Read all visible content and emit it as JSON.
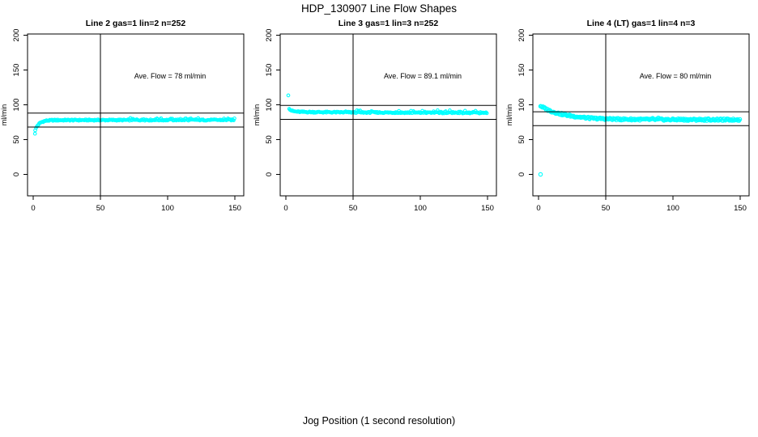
{
  "figure": {
    "main_title": "HDP_130907  Line Flow Shapes",
    "x_axis_label": "Jog Position (1 second resolution)",
    "point_color": "#00ffff",
    "line_color": "#000000",
    "background_color": "#ffffff"
  },
  "chart_data": [
    {
      "type": "scatter",
      "title": "Line 2 gas=1 lin=2 n=252",
      "annotation": "Ave. Flow =  78  ml/min",
      "ave_flow": 78,
      "n": 252,
      "ylabel": "ml/min",
      "xlim": [
        0,
        150
      ],
      "ylim": [
        0,
        200
      ],
      "x_ticks": [
        "0",
        "50",
        "100",
        "150"
      ],
      "y_ticks": [
        "0",
        "50",
        "100",
        "150",
        "200"
      ],
      "x_tick_values": [
        0,
        50,
        100,
        150
      ],
      "y_tick_values": [
        0,
        50,
        100,
        150,
        200
      ],
      "vline_x": 50,
      "hlines": [
        88,
        68
      ],
      "outliers": [
        [
          1.3,
          58.5
        ]
      ],
      "profile": [
        [
          1.5,
          64
        ],
        [
          2.5,
          68
        ],
        [
          3.5,
          71
        ],
        [
          5,
          73.8
        ],
        [
          6.5,
          75.3
        ],
        [
          8,
          76.3
        ],
        [
          10,
          77.2
        ],
        [
          14,
          77.8
        ],
        [
          25,
          78
        ],
        [
          150,
          78.2
        ]
      ],
      "x_step": 0.6,
      "marker_radius": 1.8,
      "jitter": {
        "base": 0.9,
        "spike": 2.8,
        "spike_after_x": 70,
        "spike_rate": 0.25
      }
    },
    {
      "type": "scatter",
      "title": "Line 3 gas=1 lin=3 n=252",
      "annotation": "Ave. Flow =  89.1  ml/min",
      "ave_flow": 89.1,
      "n": 252,
      "ylabel": "ml/min",
      "xlim": [
        0,
        150
      ],
      "ylim": [
        0,
        200
      ],
      "x_ticks": [
        "0",
        "50",
        "100",
        "150"
      ],
      "y_ticks": [
        "0",
        "50",
        "100",
        "150",
        "200"
      ],
      "x_tick_values": [
        0,
        50,
        100,
        150
      ],
      "y_tick_values": [
        0,
        50,
        100,
        150,
        200
      ],
      "vline_x": 50,
      "hlines": [
        99.1,
        79.1
      ],
      "outliers": [
        [
          1.8,
          113.5
        ]
      ],
      "profile": [
        [
          2.5,
          95
        ],
        [
          3.5,
          92.5
        ],
        [
          5,
          91
        ],
        [
          7,
          90.3
        ],
        [
          10,
          89.8
        ],
        [
          20,
          89.5
        ],
        [
          40,
          89.2
        ],
        [
          80,
          88.8
        ],
        [
          150,
          88.3
        ]
      ],
      "x_step": 0.6,
      "marker_radius": 1.8,
      "jitter": {
        "base": 0.9,
        "spike": 3.5,
        "spike_after_x": 40,
        "spike_rate": 0.18
      }
    },
    {
      "type": "scatter",
      "title": "Line 4 (LT) gas=1 lin=4 n=3",
      "annotation": "Ave. Flow =  80  ml/min",
      "ave_flow": 80,
      "n": 3,
      "ylabel": "ml/min",
      "xlim": [
        0,
        150
      ],
      "ylim": [
        0,
        200
      ],
      "x_ticks": [
        "0",
        "50",
        "100",
        "150"
      ],
      "y_ticks": [
        "0",
        "50",
        "100",
        "150",
        "200"
      ],
      "x_tick_values": [
        0,
        50,
        100,
        150
      ],
      "y_tick_values": [
        0,
        50,
        100,
        150,
        200
      ],
      "vline_x": 50,
      "hlines": [
        90,
        70
      ],
      "outliers": [
        [
          1.5,
          0
        ]
      ],
      "profile": [
        [
          1.5,
          98.5
        ],
        [
          4,
          95.5
        ],
        [
          6,
          93.5
        ],
        [
          8,
          91.8
        ],
        [
          10,
          90.3
        ],
        [
          14,
          88
        ],
        [
          18,
          86.2
        ],
        [
          22,
          84.8
        ],
        [
          26,
          83.5
        ],
        [
          30,
          82.5
        ],
        [
          35,
          81.4
        ],
        [
          40,
          80.6
        ],
        [
          50,
          79.8
        ],
        [
          60,
          79.3
        ],
        [
          80,
          78.9
        ],
        [
          100,
          78.7
        ],
        [
          150,
          78.5
        ]
      ],
      "x_step": 0.6,
      "marker_radius": 2.2,
      "jitter": {
        "base": 1.4,
        "spike": 1.8,
        "spike_after_x": 60,
        "spike_rate": 0.12
      }
    }
  ]
}
